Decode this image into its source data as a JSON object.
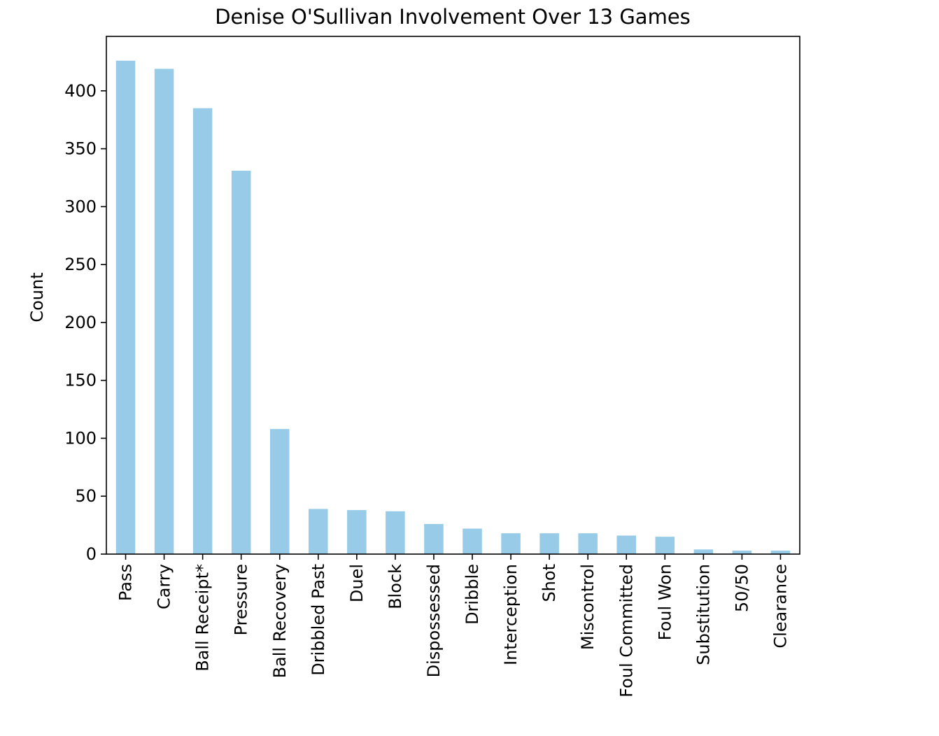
{
  "chart_data": {
    "type": "bar",
    "title": "Denise O'Sullivan Involvement Over 13 Games",
    "xlabel": "",
    "ylabel": "Count",
    "categories": [
      "Pass",
      "Carry",
      "Ball Receipt*",
      "Pressure",
      "Ball Recovery",
      "Dribbled Past",
      "Duel",
      "Block",
      "Dispossessed",
      "Dribble",
      "Interception",
      "Shot",
      "Miscontrol",
      "Foul Committed",
      "Foul Won",
      "Substitution",
      "50/50",
      "Clearance"
    ],
    "values": [
      426,
      419,
      385,
      331,
      108,
      39,
      38,
      37,
      26,
      22,
      18,
      18,
      18,
      16,
      15,
      4,
      3,
      3
    ],
    "yticks": [
      0,
      50,
      100,
      150,
      200,
      250,
      300,
      350,
      400
    ],
    "ylim": [
      0,
      447
    ],
    "grid": false,
    "legend": "none",
    "bar_color": "#97cbe8"
  }
}
